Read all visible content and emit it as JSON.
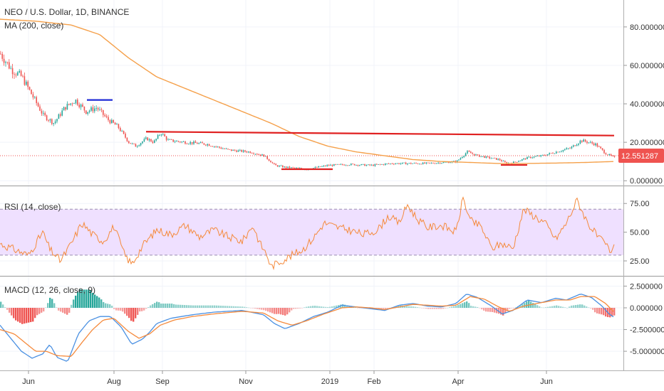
{
  "header": {
    "symbol_title": "NEO / U.S. Dollar, 1D, BINANCE",
    "ma_label": "MA (200, close)",
    "rsi_label": "RSI (14, close)",
    "macd_label": "MACD (12, 26, close, 9)",
    "last_price": "12.551287"
  },
  "colors": {
    "candle_up": "#26a69a",
    "candle_down": "#ef5350",
    "ma_line": "#f5a04a",
    "rsi_line": "#f58a3c",
    "rsi_band": "#efe0ff",
    "macd_line": "#4a90e2",
    "signal_line": "#f58a3c",
    "trend_red": "#e02020",
    "trend_blue": "#1f2bd6",
    "price_tag": "#ef5350"
  },
  "chart_data": [
    {
      "type": "candlestick",
      "title": "NEO / U.S. Dollar, 1D, BINANCE",
      "x_tick_labels": [
        "Jun",
        "Aug",
        "Sep",
        "Nov",
        "2019",
        "Feb",
        "Apr",
        "Jun"
      ],
      "y_tick_labels": [
        "80.000000",
        "60.000000",
        "40.000000",
        "20.000000",
        "0.000000"
      ],
      "y_ticks": [
        80,
        60,
        40,
        20,
        0
      ],
      "ylim": [
        -2.5,
        94
      ],
      "last_price": 12.551287,
      "price_anchors": [
        [
          0,
          66
        ],
        [
          15,
          58
        ],
        [
          30,
          54
        ],
        [
          45,
          44
        ],
        [
          60,
          34
        ],
        [
          75,
          30
        ],
        [
          90,
          38
        ],
        [
          105,
          42
        ],
        [
          120,
          36
        ],
        [
          135,
          38
        ],
        [
          150,
          32
        ],
        [
          165,
          28
        ],
        [
          180,
          20
        ],
        [
          190,
          18
        ],
        [
          205,
          22
        ],
        [
          215,
          20
        ],
        [
          225,
          25
        ],
        [
          235,
          21
        ],
        [
          260,
          20
        ],
        [
          290,
          19
        ],
        [
          320,
          16
        ],
        [
          350,
          15
        ],
        [
          370,
          13
        ],
        [
          385,
          8
        ],
        [
          400,
          7
        ],
        [
          430,
          6
        ],
        [
          460,
          8
        ],
        [
          490,
          8.5
        ],
        [
          520,
          8
        ],
        [
          550,
          9
        ],
        [
          600,
          9
        ],
        [
          640,
          10
        ],
        [
          655,
          15
        ],
        [
          670,
          13
        ],
        [
          700,
          11
        ],
        [
          710,
          9
        ],
        [
          720,
          9.5
        ],
        [
          740,
          12
        ],
        [
          760,
          13
        ],
        [
          780,
          15
        ],
        [
          800,
          17
        ],
        [
          815,
          21
        ],
        [
          835,
          19
        ],
        [
          850,
          14
        ],
        [
          862,
          12
        ]
      ],
      "ma_label": "MA (200, close)",
      "ma_anchors": [
        [
          0,
          84
        ],
        [
          50,
          83
        ],
        [
          100,
          81
        ],
        [
          140,
          76
        ],
        [
          180,
          64
        ],
        [
          220,
          54
        ],
        [
          260,
          48
        ],
        [
          300,
          42
        ],
        [
          340,
          36
        ],
        [
          380,
          30
        ],
        [
          420,
          23
        ],
        [
          460,
          18
        ],
        [
          500,
          15
        ],
        [
          540,
          13
        ],
        [
          580,
          11
        ],
        [
          620,
          10
        ],
        [
          660,
          9.5
        ],
        [
          700,
          9
        ],
        [
          740,
          9
        ],
        [
          780,
          9.2
        ],
        [
          820,
          9.5
        ],
        [
          862,
          10
        ]
      ],
      "annotations": [
        {
          "type": "hline",
          "color": "blue",
          "x": [
            122,
            158
          ],
          "y": 42
        },
        {
          "type": "trendline",
          "color": "red",
          "x": [
            205,
            862
          ],
          "y": [
            25.5,
            23.5
          ]
        },
        {
          "type": "hline",
          "color": "red",
          "x": [
            395,
            467
          ],
          "y": 6
        },
        {
          "type": "hline",
          "color": "red",
          "x": [
            703,
            740
          ],
          "y": 8.2
        }
      ]
    },
    {
      "type": "line",
      "title": "RSI (14, close)",
      "y_tick_labels": [
        "75.00",
        "50.00",
        "25.00"
      ],
      "y_ticks": [
        75,
        50,
        25
      ],
      "ylim": [
        12,
        90
      ],
      "band": [
        30,
        70
      ],
      "rsi_anchors": [
        [
          0,
          40
        ],
        [
          20,
          35
        ],
        [
          40,
          30
        ],
        [
          60,
          50
        ],
        [
          70,
          35
        ],
        [
          85,
          25
        ],
        [
          100,
          40
        ],
        [
          115,
          58
        ],
        [
          130,
          48
        ],
        [
          145,
          42
        ],
        [
          160,
          55
        ],
        [
          175,
          30
        ],
        [
          185,
          22
        ],
        [
          200,
          38
        ],
        [
          220,
          52
        ],
        [
          240,
          48
        ],
        [
          260,
          56
        ],
        [
          280,
          46
        ],
        [
          300,
          52
        ],
        [
          320,
          46
        ],
        [
          340,
          42
        ],
        [
          355,
          56
        ],
        [
          365,
          40
        ],
        [
          375,
          30
        ],
        [
          380,
          20
        ],
        [
          395,
          25
        ],
        [
          410,
          30
        ],
        [
          425,
          35
        ],
        [
          440,
          45
        ],
        [
          455,
          58
        ],
        [
          475,
          54
        ],
        [
          490,
          52
        ],
        [
          510,
          48
        ],
        [
          530,
          52
        ],
        [
          545,
          64
        ],
        [
          560,
          58
        ],
        [
          572,
          74
        ],
        [
          585,
          62
        ],
        [
          600,
          54
        ],
        [
          620,
          56
        ],
        [
          640,
          50
        ],
        [
          650,
          80
        ],
        [
          660,
          60
        ],
        [
          675,
          55
        ],
        [
          690,
          36
        ],
        [
          705,
          40
        ],
        [
          720,
          36
        ],
        [
          735,
          70
        ],
        [
          750,
          64
        ],
        [
          765,
          58
        ],
        [
          780,
          44
        ],
        [
          795,
          58
        ],
        [
          810,
          78
        ],
        [
          825,
          58
        ],
        [
          840,
          45
        ],
        [
          852,
          38
        ],
        [
          858,
          30
        ],
        [
          862,
          42
        ]
      ]
    },
    {
      "type": "bar+line",
      "title": "MACD (12, 26, close, 9)",
      "y_tick_labels": [
        "2.500000",
        "0.000000",
        "-2.500000",
        "-5.000000"
      ],
      "y_ticks": [
        2.5,
        0,
        -2.5,
        -5
      ],
      "ylim": [
        -7.2,
        3.6
      ],
      "macd_anchors": [
        [
          0,
          -2
        ],
        [
          15,
          -3.5
        ],
        [
          30,
          -5
        ],
        [
          45,
          -5.8
        ],
        [
          60,
          -5.3
        ],
        [
          70,
          -4.2
        ],
        [
          80,
          -5.7
        ],
        [
          95,
          -6.2
        ],
        [
          110,
          -3
        ],
        [
          125,
          -1.5
        ],
        [
          140,
          -1
        ],
        [
          155,
          -1
        ],
        [
          170,
          -2.2
        ],
        [
          185,
          -4.2
        ],
        [
          200,
          -3.6
        ],
        [
          210,
          -2.8
        ],
        [
          220,
          -1.8
        ],
        [
          240,
          -1.2
        ],
        [
          270,
          -0.8
        ],
        [
          300,
          -0.5
        ],
        [
          340,
          -0.3
        ],
        [
          370,
          -0.8
        ],
        [
          385,
          -1.8
        ],
        [
          400,
          -2.4
        ],
        [
          420,
          -1.8
        ],
        [
          440,
          -1
        ],
        [
          460,
          -0.5
        ],
        [
          480,
          0.3
        ],
        [
          500,
          0.1
        ],
        [
          520,
          -0.1
        ],
        [
          540,
          -0.3
        ],
        [
          560,
          0.3
        ],
        [
          580,
          0.5
        ],
        [
          600,
          0.2
        ],
        [
          620,
          0.1
        ],
        [
          640,
          0.5
        ],
        [
          655,
          1.6
        ],
        [
          670,
          1.2
        ],
        [
          690,
          0.2
        ],
        [
          705,
          -0.7
        ],
        [
          720,
          -0.3
        ],
        [
          740,
          0.9
        ],
        [
          760,
          0.6
        ],
        [
          780,
          1.1
        ],
        [
          795,
          0.9
        ],
        [
          815,
          1.6
        ],
        [
          830,
          1.2
        ],
        [
          845,
          0.2
        ],
        [
          855,
          -0.7
        ],
        [
          862,
          -1.1
        ]
      ],
      "signal_anchors": [
        [
          0,
          -2.5
        ],
        [
          20,
          -3
        ],
        [
          35,
          -4
        ],
        [
          50,
          -5
        ],
        [
          65,
          -5
        ],
        [
          80,
          -5.5
        ],
        [
          100,
          -5.6
        ],
        [
          115,
          -4
        ],
        [
          130,
          -2.5
        ],
        [
          145,
          -1.4
        ],
        [
          160,
          -1.2
        ],
        [
          180,
          -2.7
        ],
        [
          195,
          -3.5
        ],
        [
          210,
          -3
        ],
        [
          225,
          -2
        ],
        [
          245,
          -1.4
        ],
        [
          270,
          -1
        ],
        [
          300,
          -0.7
        ],
        [
          340,
          -0.4
        ],
        [
          370,
          -0.6
        ],
        [
          390,
          -1.5
        ],
        [
          410,
          -2
        ],
        [
          430,
          -1.5
        ],
        [
          455,
          -0.7
        ],
        [
          480,
          0
        ],
        [
          500,
          0.1
        ],
        [
          520,
          0
        ],
        [
          540,
          -0.2
        ],
        [
          560,
          0.1
        ],
        [
          580,
          0.4
        ],
        [
          600,
          0.3
        ],
        [
          620,
          0.2
        ],
        [
          640,
          0.3
        ],
        [
          660,
          1.3
        ],
        [
          680,
          1
        ],
        [
          700,
          0.1
        ],
        [
          715,
          -0.4
        ],
        [
          735,
          0.2
        ],
        [
          760,
          0.6
        ],
        [
          780,
          0.9
        ],
        [
          800,
          0.9
        ],
        [
          815,
          1.3
        ],
        [
          835,
          1.3
        ],
        [
          850,
          0.5
        ],
        [
          862,
          -0.5
        ]
      ]
    }
  ]
}
